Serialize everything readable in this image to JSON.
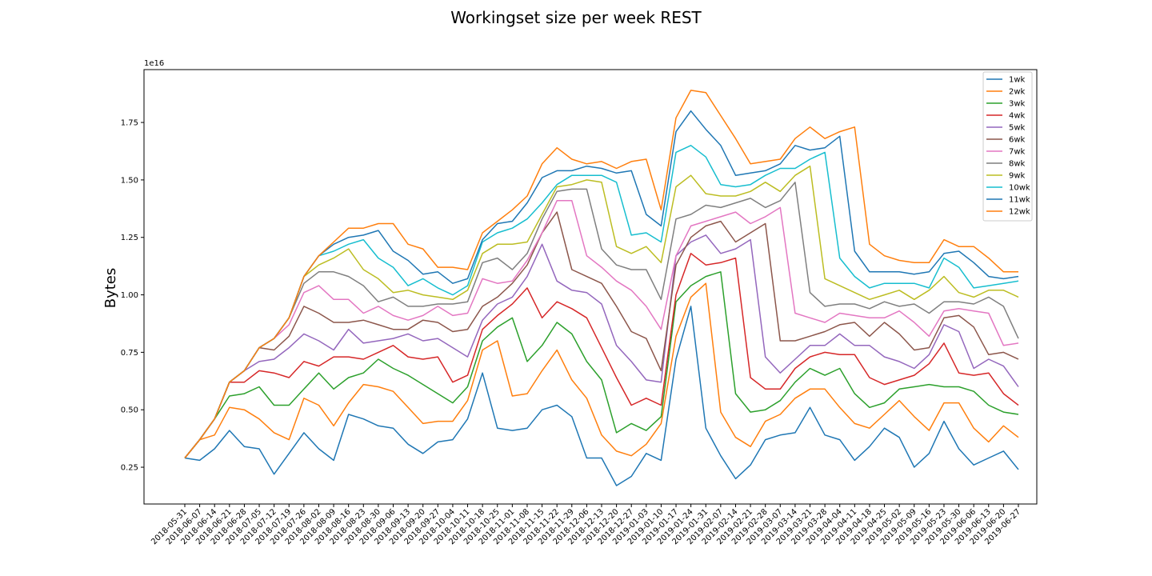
{
  "chart_data": {
    "type": "line",
    "title": "Workingset size per week REST",
    "xlabel": "",
    "ylabel": "Bytes",
    "y_offset_text": "1e16",
    "y_scale": 1e+16,
    "ylim": [
      0.09,
      1.98
    ],
    "yticks": [
      0.25,
      0.5,
      0.75,
      1.0,
      1.25,
      1.5,
      1.75
    ],
    "ytick_labels": [
      "0.25",
      "0.50",
      "0.75",
      "1.00",
      "1.25",
      "1.50",
      "1.75"
    ],
    "grid": false,
    "legend_position": "top-right",
    "x": [
      "2018-05-31",
      "2018-06-07",
      "2018-06-14",
      "2018-06-21",
      "2018-06-28",
      "2018-07-05",
      "2018-07-12",
      "2018-07-19",
      "2018-07-26",
      "2018-08-02",
      "2018-08-09",
      "2018-08-16",
      "2018-08-23",
      "2018-08-30",
      "2018-09-06",
      "2018-09-13",
      "2018-09-20",
      "2018-09-27",
      "2018-10-04",
      "2018-10-11",
      "2018-10-18",
      "2018-10-25",
      "2018-11-01",
      "2018-11-08",
      "2018-11-15",
      "2018-11-22",
      "2018-11-29",
      "2018-12-06",
      "2018-12-13",
      "2018-12-20",
      "2018-12-27",
      "2019-01-03",
      "2019-01-10",
      "2019-01-17",
      "2019-01-24",
      "2019-01-31",
      "2019-02-07",
      "2019-02-14",
      "2019-02-21",
      "2019-02-28",
      "2019-03-07",
      "2019-03-14",
      "2019-03-21",
      "2019-03-28",
      "2019-04-04",
      "2019-04-11",
      "2019-04-18",
      "2019-04-25",
      "2019-05-02",
      "2019-05-09",
      "2019-05-16",
      "2019-05-23",
      "2019-05-30",
      "2019-06-06",
      "2019-06-13",
      "2019-06-20",
      "2019-06-27"
    ],
    "series": [
      {
        "name": "1wk",
        "color": "#1f77b4",
        "values": [
          0.29,
          0.28,
          0.33,
          0.41,
          0.34,
          0.33,
          0.22,
          0.31,
          0.4,
          0.33,
          0.28,
          0.48,
          0.46,
          0.43,
          0.42,
          0.35,
          0.31,
          0.36,
          0.37,
          0.46,
          0.66,
          0.42,
          0.41,
          0.42,
          0.5,
          0.52,
          0.47,
          0.29,
          0.29,
          0.17,
          0.21,
          0.31,
          0.28,
          0.72,
          0.95,
          0.42,
          0.3,
          0.2,
          0.26,
          0.37,
          0.39,
          0.4,
          0.51,
          0.39,
          0.37,
          0.28,
          0.34,
          0.42,
          0.38,
          0.25,
          0.31,
          0.45,
          0.33,
          0.26,
          0.29,
          0.32,
          0.24
        ]
      },
      {
        "name": "2wk",
        "color": "#ff7f0e",
        "values": [
          0.29,
          0.37,
          0.39,
          0.51,
          0.5,
          0.46,
          0.4,
          0.37,
          0.55,
          0.52,
          0.43,
          0.53,
          0.61,
          0.6,
          0.58,
          0.51,
          0.44,
          0.45,
          0.45,
          0.54,
          0.76,
          0.8,
          0.56,
          0.57,
          0.67,
          0.76,
          0.63,
          0.55,
          0.39,
          0.32,
          0.3,
          0.35,
          0.44,
          0.82,
          0.99,
          1.05,
          0.49,
          0.38,
          0.34,
          0.45,
          0.48,
          0.55,
          0.59,
          0.59,
          0.51,
          0.44,
          0.42,
          0.48,
          0.54,
          0.47,
          0.41,
          0.53,
          0.53,
          0.42,
          0.36,
          0.43,
          0.38
        ]
      },
      {
        "name": "3wk",
        "color": "#2ca02c",
        "values": [
          0.29,
          0.37,
          0.46,
          0.56,
          0.57,
          0.6,
          0.52,
          0.52,
          0.59,
          0.66,
          0.59,
          0.64,
          0.66,
          0.72,
          0.68,
          0.65,
          0.61,
          0.57,
          0.53,
          0.6,
          0.8,
          0.86,
          0.9,
          0.71,
          0.78,
          0.88,
          0.83,
          0.71,
          0.63,
          0.4,
          0.44,
          0.41,
          0.47,
          0.97,
          1.04,
          1.08,
          1.1,
          0.57,
          0.49,
          0.5,
          0.54,
          0.62,
          0.68,
          0.65,
          0.68,
          0.57,
          0.51,
          0.53,
          0.59,
          0.6,
          0.61,
          0.6,
          0.6,
          0.58,
          0.52,
          0.49,
          0.48
        ]
      },
      {
        "name": "4wk",
        "color": "#d62728",
        "values": [
          0.29,
          0.37,
          0.46,
          0.62,
          0.62,
          0.67,
          0.66,
          0.64,
          0.71,
          0.69,
          0.73,
          0.73,
          0.72,
          0.75,
          0.78,
          0.73,
          0.72,
          0.73,
          0.62,
          0.65,
          0.85,
          0.91,
          0.96,
          1.03,
          0.9,
          0.97,
          0.94,
          0.9,
          0.77,
          0.64,
          0.52,
          0.55,
          0.52,
          1.0,
          1.18,
          1.13,
          1.14,
          1.16,
          0.64,
          0.59,
          0.59,
          0.68,
          0.73,
          0.75,
          0.74,
          0.74,
          0.64,
          0.61,
          0.63,
          0.65,
          0.7,
          0.79,
          0.66,
          0.65,
          0.66,
          0.57,
          0.52
        ]
      },
      {
        "name": "5wk",
        "color": "#9467bd",
        "values": [
          0.29,
          0.37,
          0.46,
          0.62,
          0.67,
          0.71,
          0.72,
          0.77,
          0.83,
          0.8,
          0.76,
          0.85,
          0.79,
          0.8,
          0.81,
          0.83,
          0.8,
          0.81,
          0.77,
          0.73,
          0.89,
          0.96,
          0.99,
          1.08,
          1.22,
          1.06,
          1.02,
          1.01,
          0.96,
          0.78,
          0.71,
          0.63,
          0.62,
          1.17,
          1.23,
          1.26,
          1.18,
          1.2,
          1.24,
          0.73,
          0.66,
          0.72,
          0.78,
          0.78,
          0.83,
          0.78,
          0.78,
          0.73,
          0.71,
          0.68,
          0.74,
          0.87,
          0.84,
          0.68,
          0.72,
          0.69,
          0.6
        ]
      },
      {
        "name": "6wk",
        "color": "#8c564b",
        "values": [
          0.29,
          0.37,
          0.46,
          0.62,
          0.67,
          0.77,
          0.76,
          0.82,
          0.95,
          0.92,
          0.88,
          0.88,
          0.89,
          0.87,
          0.85,
          0.85,
          0.89,
          0.88,
          0.84,
          0.85,
          0.95,
          0.99,
          1.05,
          1.13,
          1.27,
          1.36,
          1.11,
          1.08,
          1.05,
          0.95,
          0.84,
          0.81,
          0.67,
          1.13,
          1.25,
          1.3,
          1.32,
          1.23,
          1.27,
          1.31,
          0.8,
          0.8,
          0.82,
          0.84,
          0.87,
          0.88,
          0.82,
          0.88,
          0.83,
          0.76,
          0.77,
          0.9,
          0.91,
          0.86,
          0.74,
          0.75,
          0.72
        ]
      },
      {
        "name": "7wk",
        "color": "#e377c2",
        "values": [
          0.29,
          0.37,
          0.46,
          0.62,
          0.67,
          0.77,
          0.81,
          0.87,
          1.01,
          1.04,
          0.98,
          0.98,
          0.92,
          0.95,
          0.91,
          0.89,
          0.91,
          0.95,
          0.91,
          0.92,
          1.07,
          1.05,
          1.06,
          1.15,
          1.27,
          1.41,
          1.41,
          1.17,
          1.12,
          1.06,
          1.02,
          0.95,
          0.85,
          1.17,
          1.3,
          1.32,
          1.34,
          1.36,
          1.31,
          1.34,
          1.38,
          0.92,
          0.9,
          0.88,
          0.92,
          0.91,
          0.9,
          0.9,
          0.93,
          0.88,
          0.82,
          0.93,
          0.94,
          0.93,
          0.92,
          0.78,
          0.79
        ]
      },
      {
        "name": "8wk",
        "color": "#7f7f7f",
        "values": [
          0.29,
          0.37,
          0.46,
          0.62,
          0.67,
          0.77,
          0.81,
          0.9,
          1.05,
          1.1,
          1.1,
          1.08,
          1.04,
          0.97,
          0.99,
          0.95,
          0.95,
          0.96,
          0.96,
          0.97,
          1.14,
          1.16,
          1.11,
          1.18,
          1.33,
          1.45,
          1.46,
          1.46,
          1.2,
          1.13,
          1.11,
          1.11,
          0.98,
          1.33,
          1.35,
          1.39,
          1.38,
          1.4,
          1.42,
          1.38,
          1.41,
          1.49,
          1.01,
          0.95,
          0.96,
          0.96,
          0.94,
          0.97,
          0.95,
          0.96,
          0.92,
          0.97,
          0.97,
          0.96,
          0.99,
          0.95,
          0.81
        ]
      },
      {
        "name": "9wk",
        "color": "#bcbd22",
        "values": [
          0.29,
          0.37,
          0.46,
          0.62,
          0.67,
          0.77,
          0.81,
          0.9,
          1.08,
          1.13,
          1.16,
          1.2,
          1.11,
          1.07,
          1.01,
          1.02,
          1.0,
          0.99,
          0.98,
          1.02,
          1.18,
          1.22,
          1.22,
          1.23,
          1.35,
          1.47,
          1.48,
          1.5,
          1.49,
          1.21,
          1.18,
          1.21,
          1.14,
          1.47,
          1.52,
          1.44,
          1.43,
          1.43,
          1.45,
          1.49,
          1.45,
          1.52,
          1.56,
          1.07,
          1.04,
          1.01,
          0.98,
          1.0,
          1.02,
          0.98,
          1.02,
          1.08,
          1.01,
          0.99,
          1.02,
          1.02,
          0.99
        ]
      },
      {
        "name": "10wk",
        "color": "#17becf",
        "values": [
          0.29,
          0.37,
          0.46,
          0.62,
          0.67,
          0.77,
          0.81,
          0.9,
          1.08,
          1.17,
          1.19,
          1.22,
          1.24,
          1.16,
          1.12,
          1.04,
          1.07,
          1.03,
          1.0,
          1.04,
          1.23,
          1.27,
          1.29,
          1.33,
          1.4,
          1.48,
          1.52,
          1.52,
          1.52,
          1.49,
          1.26,
          1.27,
          1.23,
          1.62,
          1.65,
          1.6,
          1.48,
          1.47,
          1.48,
          1.52,
          1.55,
          1.55,
          1.59,
          1.62,
          1.16,
          1.08,
          1.03,
          1.05,
          1.05,
          1.05,
          1.03,
          1.16,
          1.12,
          1.03,
          1.04,
          1.05,
          1.06
        ]
      },
      {
        "name": "11wk",
        "color": "#1f77b4",
        "values": [
          0.29,
          0.37,
          0.46,
          0.62,
          0.67,
          0.77,
          0.81,
          0.9,
          1.08,
          1.17,
          1.22,
          1.25,
          1.26,
          1.28,
          1.19,
          1.15,
          1.09,
          1.1,
          1.05,
          1.07,
          1.24,
          1.31,
          1.32,
          1.4,
          1.51,
          1.54,
          1.54,
          1.56,
          1.55,
          1.53,
          1.54,
          1.35,
          1.3,
          1.71,
          1.8,
          1.72,
          1.65,
          1.52,
          1.53,
          1.54,
          1.57,
          1.65,
          1.63,
          1.64,
          1.69,
          1.19,
          1.1,
          1.1,
          1.1,
          1.09,
          1.1,
          1.18,
          1.19,
          1.14,
          1.08,
          1.07,
          1.08
        ]
      },
      {
        "name": "12wk",
        "color": "#ff7f0e",
        "values": [
          0.29,
          0.37,
          0.46,
          0.62,
          0.67,
          0.77,
          0.81,
          0.9,
          1.08,
          1.17,
          1.23,
          1.29,
          1.29,
          1.31,
          1.31,
          1.22,
          1.2,
          1.12,
          1.12,
          1.11,
          1.27,
          1.32,
          1.37,
          1.43,
          1.57,
          1.64,
          1.59,
          1.57,
          1.58,
          1.55,
          1.58,
          1.59,
          1.37,
          1.77,
          1.89,
          1.88,
          1.78,
          1.68,
          1.57,
          1.58,
          1.59,
          1.68,
          1.73,
          1.68,
          1.71,
          1.73,
          1.22,
          1.17,
          1.15,
          1.14,
          1.14,
          1.24,
          1.21,
          1.21,
          1.16,
          1.1,
          1.1
        ]
      }
    ]
  }
}
